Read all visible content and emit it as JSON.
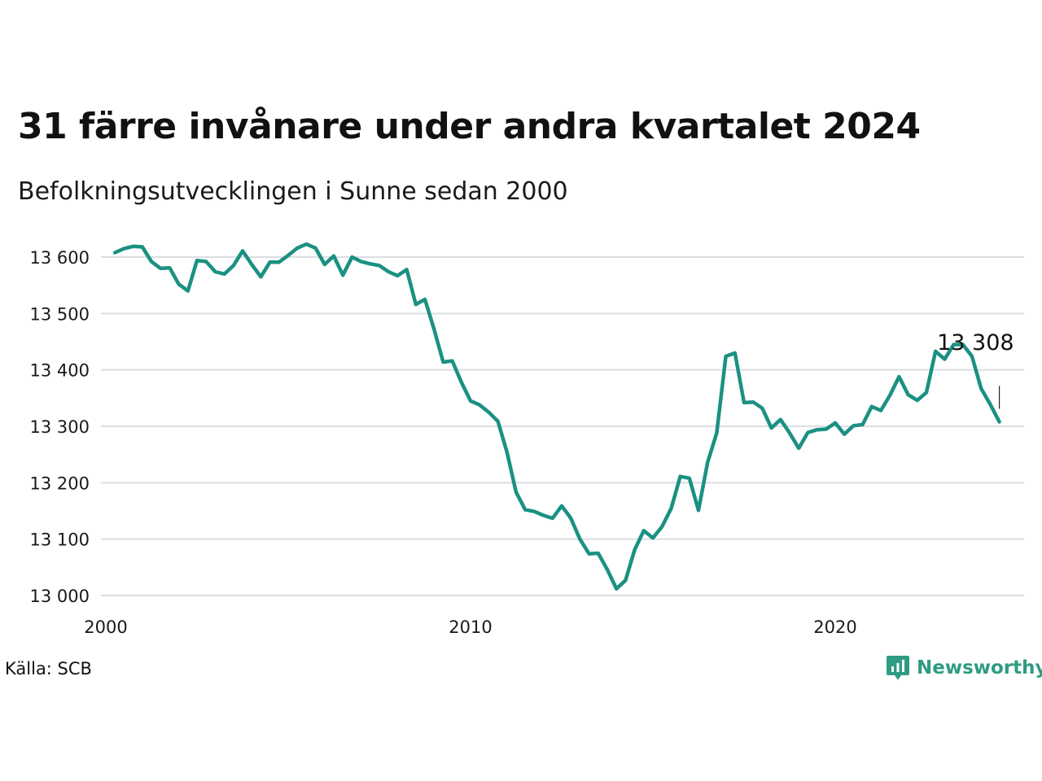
{
  "chart_data": {
    "type": "line",
    "title": "31 färre invånare under andra kvartalet 2024",
    "subtitle": "Befolkningsutvecklingen i Sunne sedan 2000",
    "xlabel": "",
    "ylabel": "",
    "xlim": [
      2000,
      2025.0
    ],
    "ylim": [
      13000,
      13630
    ],
    "y_ticks": [
      {
        "value": 13000,
        "label": "13 000"
      },
      {
        "value": 13100,
        "label": "13 100"
      },
      {
        "value": 13200,
        "label": "13 200"
      },
      {
        "value": 13300,
        "label": "13 300"
      },
      {
        "value": 13400,
        "label": "13 400"
      },
      {
        "value": 13500,
        "label": "13 500"
      },
      {
        "value": 13600,
        "label": "13 600"
      }
    ],
    "x_ticks": [
      {
        "value": 2000,
        "label": "2000"
      },
      {
        "value": 2010,
        "label": "2010"
      },
      {
        "value": 2020,
        "label": "2020"
      }
    ],
    "grid": true,
    "line_color": "#1a9182",
    "annotation": {
      "label": "13 308"
    },
    "series": [
      {
        "x": [
          2000.25,
          2000.5,
          2000.75,
          2001,
          2001.25,
          2001.5,
          2001.75,
          2002,
          2002.25,
          2002.5,
          2002.75,
          2003,
          2003.25,
          2003.5,
          2003.75,
          2004,
          2004.25,
          2004.5,
          2004.75,
          2005,
          2005.25,
          2005.5,
          2005.75,
          2006,
          2006.25,
          2006.5,
          2006.75,
          2007,
          2007.25,
          2007.5,
          2007.75,
          2008,
          2008.25,
          2008.5,
          2008.75,
          2009,
          2009.25,
          2009.5,
          2009.75,
          2010,
          2010.25,
          2010.5,
          2010.75,
          2011,
          2011.25,
          2011.5,
          2011.75,
          2012,
          2012.25,
          2012.5,
          2012.75,
          2013,
          2013.25,
          2013.5,
          2013.75,
          2014,
          2014.25,
          2014.5,
          2014.75,
          2015,
          2015.25,
          2015.5,
          2015.75,
          2016,
          2016.25,
          2016.5,
          2016.75,
          2017,
          2017.25,
          2017.5,
          2017.75,
          2018,
          2018.25,
          2018.5,
          2018.75,
          2019,
          2019.25,
          2019.5,
          2019.75,
          2020,
          2020.25,
          2020.5,
          2020.75,
          2021,
          2021.25,
          2021.5,
          2021.75,
          2022,
          2022.25,
          2022.5,
          2022.75,
          2023,
          2023.25,
          2023.5,
          2023.75,
          2024,
          2024.25,
          2024.5
        ],
        "values": [
          13608,
          13615,
          13619,
          13618,
          13592,
          13580,
          13581,
          13552,
          13540,
          13594,
          13592,
          13574,
          13570,
          13585,
          13611,
          13587,
          13565,
          13591,
          13591,
          13603,
          13616,
          13623,
          13616,
          13587,
          13602,
          13568,
          13600,
          13592,
          13588,
          13585,
          13574,
          13567,
          13578,
          13516,
          13525,
          13472,
          13414,
          13416,
          13378,
          13345,
          13338,
          13325,
          13309,
          13254,
          13183,
          13152,
          13149,
          13142,
          13137,
          13159,
          13137,
          13100,
          13074,
          13075,
          13046,
          13012,
          13027,
          13081,
          13115,
          13102,
          13122,
          13154,
          13211,
          13208,
          13151,
          13236,
          13288,
          13424,
          13430,
          13342,
          13343,
          13332,
          13297,
          13312,
          13288,
          13261,
          13289,
          13294,
          13295,
          13306,
          13286,
          13301,
          13303,
          13335,
          13328,
          13355,
          13388,
          13356,
          13346,
          13360,
          13433,
          13419,
          13445,
          13445,
          13424,
          13367,
          13339,
          13308
        ]
      }
    ]
  },
  "footer": {
    "source": "Källa: SCB",
    "brand": "Newsworthy"
  },
  "colors": {
    "line": "#1a9182",
    "grid": "#dcdde3",
    "brand": "#2f9b83"
  }
}
